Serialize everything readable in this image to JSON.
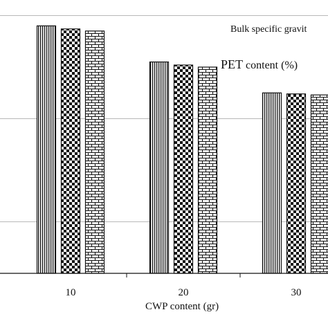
{
  "chart_data": {
    "type": "bar",
    "title": "Bulk specific gravit",
    "legend_title_main": "PET",
    "legend_title_rest": " content (%)",
    "xlabel": "CWP content (gr)",
    "ylabel": "",
    "categories": [
      "",
      "10",
      "20",
      "30"
    ],
    "series": [
      {
        "pattern": "vertical-lines",
        "values": [
          2.35,
          2.34,
          2.305,
          2.275
        ]
      },
      {
        "pattern": "checkerboard",
        "values": [
          null,
          2.337,
          2.302,
          2.274
        ]
      },
      {
        "pattern": "brick",
        "values": [
          null,
          2.335,
          2.3,
          2.273
        ]
      }
    ],
    "ylim": [
      2.1,
      2.355
    ],
    "grid": true,
    "gridlines_at": [
      2.15,
      2.25,
      2.35
    ]
  }
}
